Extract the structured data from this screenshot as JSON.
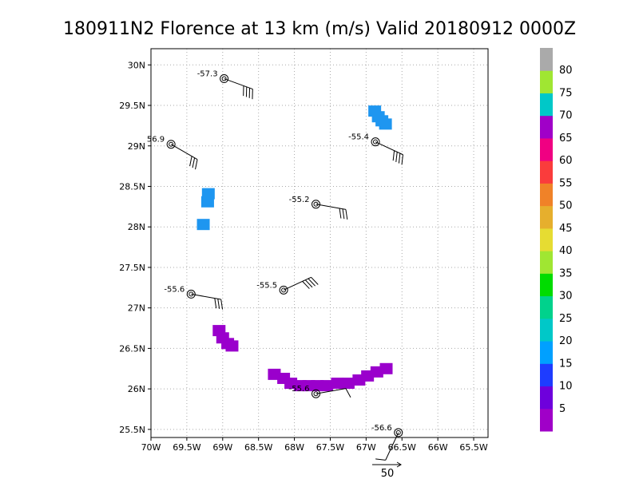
{
  "chart_data": {
    "type": "scatter",
    "title": "180911N2 Florence at 13 km (m/s) Valid 20180912 0000Z",
    "x_ticks": [
      {
        "value": -70,
        "label": "70W"
      },
      {
        "value": -69.5,
        "label": "69.5W"
      },
      {
        "value": -69,
        "label": "69W"
      },
      {
        "value": -68.5,
        "label": "68.5W"
      },
      {
        "value": -68,
        "label": "68W"
      },
      {
        "value": -67.5,
        "label": "67.5W"
      },
      {
        "value": -67,
        "label": "67W"
      },
      {
        "value": -66.5,
        "label": "66.5W"
      },
      {
        "value": -66,
        "label": "66W"
      },
      {
        "value": -65.5,
        "label": "65.5W"
      }
    ],
    "y_ticks": [
      {
        "value": 25.5,
        "label": "25.5N"
      },
      {
        "value": 26,
        "label": "26N"
      },
      {
        "value": 26.5,
        "label": "26.5N"
      },
      {
        "value": 27,
        "label": "27N"
      },
      {
        "value": 27.5,
        "label": "27.5N"
      },
      {
        "value": 28,
        "label": "28N"
      },
      {
        "value": 28.5,
        "label": "28.5N"
      },
      {
        "value": 29,
        "label": "29N"
      },
      {
        "value": 29.5,
        "label": "29.5N"
      },
      {
        "value": 30,
        "label": "30N"
      }
    ],
    "xlim": [
      -70,
      -65.3
    ],
    "ylim": [
      25.4,
      30.2
    ],
    "grid": true,
    "stations": [
      {
        "label": "-57.3",
        "lon": -68.98,
        "lat": 29.83,
        "barb_dir": 290,
        "barbs": 4
      },
      {
        "label": "56.9",
        "lon": -69.72,
        "lat": 29.02,
        "barb_dir": 300,
        "barbs": 3
      },
      {
        "label": "-55.4",
        "lon": -66.87,
        "lat": 29.05,
        "barb_dir": 295,
        "barbs": 4
      },
      {
        "label": "-55.2",
        "lon": -67.7,
        "lat": 28.28,
        "barb_dir": 280,
        "barbs": 3
      },
      {
        "label": "-55.5",
        "lon": -68.15,
        "lat": 27.22,
        "barb_dir": 245,
        "barbs": 4
      },
      {
        "label": "-55.6",
        "lon": -69.44,
        "lat": 27.17,
        "barb_dir": 280,
        "barbs": 3
      },
      {
        "label": "-55.6",
        "lon": -67.7,
        "lat": 25.94,
        "barb_dir": 260,
        "barbs": 1
      },
      {
        "label": "-56.6",
        "lon": -66.55,
        "lat": 25.46,
        "barb_dir": 25,
        "barbs": 1
      }
    ],
    "wind_cells": [
      {
        "lon": -66.83,
        "lat": 29.35,
        "speed": 20
      },
      {
        "lon": -66.78,
        "lat": 29.3,
        "speed": 20
      },
      {
        "lon": -66.73,
        "lat": 29.26,
        "speed": 20
      },
      {
        "lon": -66.88,
        "lat": 29.42,
        "speed": 20
      },
      {
        "lon": -69.2,
        "lat": 28.4,
        "speed": 20
      },
      {
        "lon": -69.21,
        "lat": 28.3,
        "speed": 20
      },
      {
        "lon": -69.27,
        "lat": 28.02,
        "speed": 20
      },
      {
        "lon": -69.05,
        "lat": 26.71,
        "speed": 3
      },
      {
        "lon": -69.0,
        "lat": 26.62,
        "speed": 3
      },
      {
        "lon": -68.93,
        "lat": 26.55,
        "speed": 3
      },
      {
        "lon": -68.87,
        "lat": 26.52,
        "speed": 3
      },
      {
        "lon": -68.28,
        "lat": 26.17,
        "speed": 3
      },
      {
        "lon": -68.15,
        "lat": 26.12,
        "speed": 3
      },
      {
        "lon": -68.05,
        "lat": 26.06,
        "speed": 3
      },
      {
        "lon": -67.92,
        "lat": 26.03,
        "speed": 3
      },
      {
        "lon": -67.8,
        "lat": 26.03,
        "speed": 3
      },
      {
        "lon": -67.68,
        "lat": 26.03,
        "speed": 3
      },
      {
        "lon": -67.55,
        "lat": 26.03,
        "speed": 3
      },
      {
        "lon": -67.4,
        "lat": 26.06,
        "speed": 3
      },
      {
        "lon": -67.25,
        "lat": 26.06,
        "speed": 3
      },
      {
        "lon": -67.1,
        "lat": 26.1,
        "speed": 3
      },
      {
        "lon": -66.98,
        "lat": 26.15,
        "speed": 3
      },
      {
        "lon": -66.85,
        "lat": 26.2,
        "speed": 3
      },
      {
        "lon": -66.72,
        "lat": 26.24,
        "speed": 3
      }
    ],
    "colorbar": {
      "labels": [
        "5",
        "10",
        "15",
        "20",
        "25",
        "30",
        "35",
        "40",
        "45",
        "50",
        "55",
        "60",
        "65",
        "70",
        "75",
        "80"
      ],
      "colors": [
        "#a000c8",
        "#6e00dc",
        "#1e3cff",
        "#00a0ff",
        "#00c8c8",
        "#00d28c",
        "#00dc00",
        "#a0e632",
        "#e6dc32",
        "#e6af2d",
        "#f08228",
        "#fa3c3c",
        "#f00082",
        "#a000c8",
        "#00c8c8",
        "#a0e632",
        "#aaaaaa"
      ]
    },
    "reference_vector": {
      "label": "50",
      "value": 50
    }
  }
}
